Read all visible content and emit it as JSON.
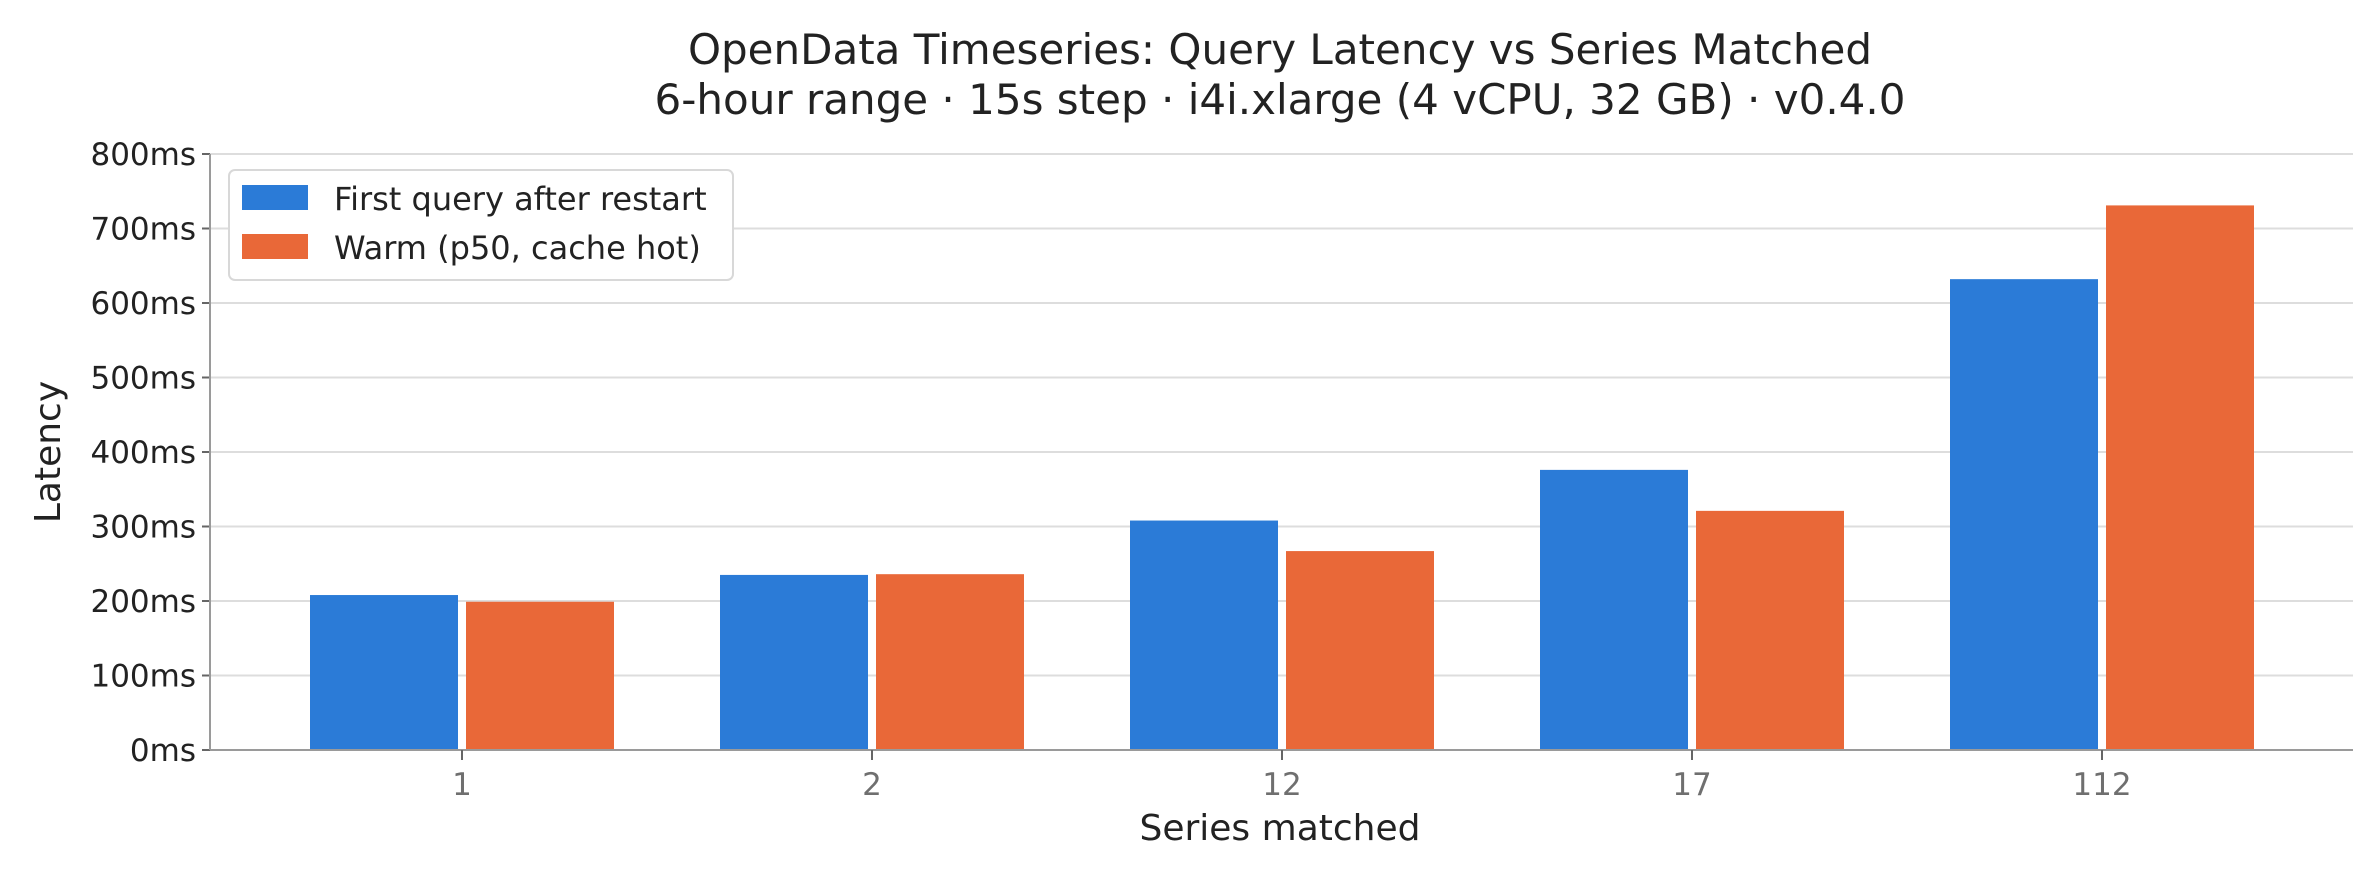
{
  "chart_data": {
    "type": "bar",
    "title": "OpenData Timeseries: Query Latency vs Series Matched",
    "subtitle": "6-hour range · 15s step · i4i.xlarge (4 vCPU, 32 GB) · v0.4.0",
    "xlabel": "Series matched",
    "ylabel": "Latency",
    "categories": [
      "1",
      "2",
      "12",
      "17",
      "112"
    ],
    "ylim": [
      0,
      800
    ],
    "yticks": [
      0,
      100,
      200,
      300,
      400,
      500,
      600,
      700,
      800
    ],
    "ytick_labels": [
      "0ms",
      "100ms",
      "200ms",
      "300ms",
      "400ms",
      "500ms",
      "600ms",
      "700ms",
      "800ms"
    ],
    "grid": true,
    "legend_position": "top-left",
    "series": [
      {
        "name": "First query after restart",
        "color": "#2b7bd7",
        "values": [
          208,
          235,
          308,
          376,
          632
        ]
      },
      {
        "name": "Warm (p50, cache hot)",
        "color": "#e96838",
        "values": [
          199,
          236,
          267,
          321,
          731
        ]
      }
    ]
  }
}
